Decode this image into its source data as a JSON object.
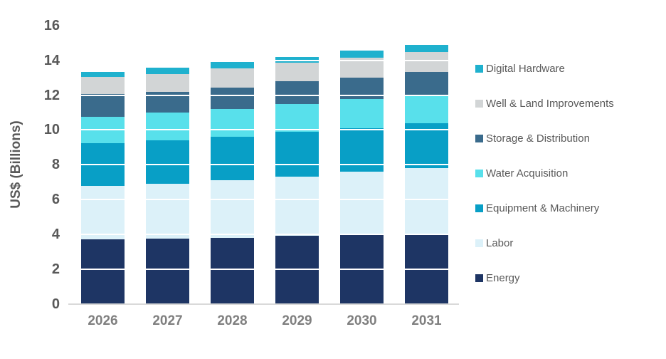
{
  "chart_data": {
    "type": "bar",
    "stacked": true,
    "title": "",
    "ylabel": "US$ (Billions)",
    "xlabel": "",
    "ylim": [
      0,
      16
    ],
    "ytick_step": 2,
    "ytick_labels": [
      "0",
      "2",
      "4",
      "6",
      "8",
      "10",
      "12",
      "14",
      "16"
    ],
    "grid": true,
    "gridline_color": "#ffffff",
    "legend_position": "right",
    "categories": [
      "2026",
      "2027",
      "2028",
      "2029",
      "2030",
      "2031"
    ],
    "series": [
      {
        "name": "Energy",
        "color": "#1E3564",
        "values": [
          3.7,
          3.75,
          3.8,
          3.9,
          3.95,
          4.0
        ]
      },
      {
        "name": "Labor",
        "color": "#DCF1F9",
        "values": [
          3.1,
          3.15,
          3.3,
          3.4,
          3.65,
          3.8
        ]
      },
      {
        "name": "Equipment & Machinery",
        "color": "#089FC6",
        "values": [
          2.45,
          2.5,
          2.5,
          2.6,
          2.5,
          2.6
        ]
      },
      {
        "name": "Water Acquisition",
        "color": "#58E0EB",
        "values": [
          1.5,
          1.6,
          1.6,
          1.6,
          1.7,
          1.6
        ]
      },
      {
        "name": "Storage & Distribution",
        "color": "#3A6B8C",
        "values": [
          1.3,
          1.2,
          1.25,
          1.3,
          1.2,
          1.35
        ]
      },
      {
        "name": "Well & Land Improvements",
        "color": "#D2D5D6",
        "values": [
          1.0,
          1.0,
          1.1,
          1.05,
          1.15,
          1.15
        ]
      },
      {
        "name": "Digital Hardware",
        "color": "#1FB1CE",
        "values": [
          0.3,
          0.4,
          0.35,
          0.35,
          0.4,
          0.4
        ]
      }
    ],
    "totals": [
      13.35,
      13.6,
      13.9,
      14.2,
      14.55,
      14.9
    ],
    "legend_order_top_to_bottom": [
      "Digital Hardware",
      "Well & Land Improvements",
      "Storage & Distribution",
      "Water Acquisition",
      "Equipment & Machinery",
      "Labor",
      "Energy"
    ]
  }
}
